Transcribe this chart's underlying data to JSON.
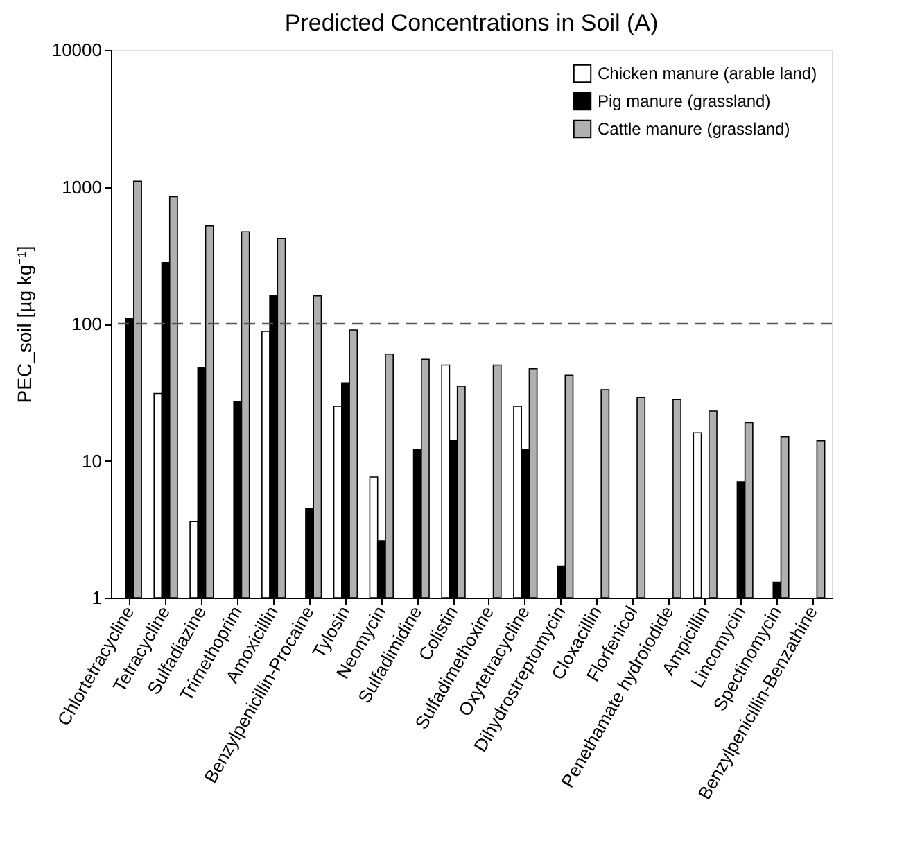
{
  "chart_data": {
    "type": "bar",
    "title": "Predicted Concentrations in Soil (A)",
    "ylabel": "PEC_soil [µg kg⁻¹]",
    "categories": [
      "Chlortetracycline",
      "Tetracycline",
      "Sulfadiazine",
      "Trimethoprim",
      "Amoxicillin",
      "Benzylpenicillin-Procaine",
      "Tylosin",
      "Neomycin",
      "Sulfadimidine",
      "Colistin",
      "Sulfadimethoxine",
      "Oxytetracycline",
      "Dihydrostreptomycin",
      "Cloxacillin",
      "Florfenicol",
      "Penethamate hydroiodide",
      "Ampicillin",
      "Lincomycin",
      "Spectinomycin",
      "Benzylpenicillin-Benzathine"
    ],
    "series": [
      {
        "name": "Chicken manure (arable land)",
        "color": "#ffffff",
        "values": [
          null,
          31,
          3.6,
          null,
          88,
          null,
          25,
          7.6,
          null,
          50,
          null,
          25,
          null,
          null,
          null,
          null,
          16,
          null,
          null,
          null
        ]
      },
      {
        "name": "Pig manure (grassland)",
        "color": "#000000",
        "values": [
          110,
          280,
          48,
          27,
          160,
          4.5,
          37,
          2.6,
          12,
          14,
          null,
          12,
          1.7,
          null,
          null,
          null,
          null,
          7,
          1.3,
          null
        ]
      },
      {
        "name": "Cattle manure (grassland)",
        "color": "#b0b0b0",
        "values": [
          1100,
          850,
          520,
          470,
          420,
          160,
          90,
          60,
          55,
          35,
          50,
          47,
          42,
          33,
          29,
          28,
          23,
          19,
          15,
          14
        ]
      }
    ],
    "log": true,
    "ylim": [
      1,
      10000
    ],
    "yticks": [
      1,
      10,
      100,
      1000,
      10000
    ],
    "grid": false,
    "legend": "top right",
    "ref_lines": [
      {
        "axis": "y",
        "value": 100,
        "line_style": "dashed",
        "color": "#555555"
      }
    ]
  }
}
